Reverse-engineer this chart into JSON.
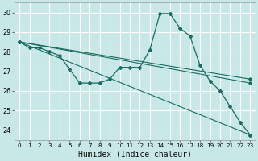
{
  "xlabel": "Humidex (Indice chaleur)",
  "ylabel": "",
  "background_color": "#c8e8e8",
  "grid_color": "#ffffff",
  "line_color": "#1a6b60",
  "xlim": [
    -0.5,
    23.5
  ],
  "ylim": [
    23.5,
    30.5
  ],
  "xticks": [
    0,
    1,
    2,
    3,
    4,
    5,
    6,
    7,
    8,
    9,
    10,
    11,
    12,
    13,
    14,
    15,
    16,
    17,
    18,
    19,
    20,
    21,
    22,
    23
  ],
  "yticks": [
    24,
    25,
    26,
    27,
    28,
    29,
    30
  ],
  "series": [
    {
      "x": [
        0,
        1,
        2,
        3,
        4,
        5,
        6,
        7,
        8,
        9,
        10,
        11,
        12,
        13,
        14,
        15,
        16,
        17,
        18,
        19,
        20,
        21,
        22,
        23
      ],
      "y": [
        28.5,
        28.2,
        28.2,
        28.0,
        27.8,
        27.1,
        26.4,
        26.4,
        26.4,
        26.6,
        27.2,
        27.2,
        27.2,
        28.1,
        29.95,
        29.95,
        29.2,
        28.8,
        27.3,
        26.5,
        26.0,
        25.2,
        24.4,
        23.75
      ]
    },
    {
      "x": [
        0,
        23
      ],
      "y": [
        28.5,
        23.75
      ]
    },
    {
      "x": [
        0,
        23
      ],
      "y": [
        28.5,
        26.4
      ]
    },
    {
      "x": [
        0,
        23
      ],
      "y": [
        28.5,
        26.6
      ]
    }
  ]
}
